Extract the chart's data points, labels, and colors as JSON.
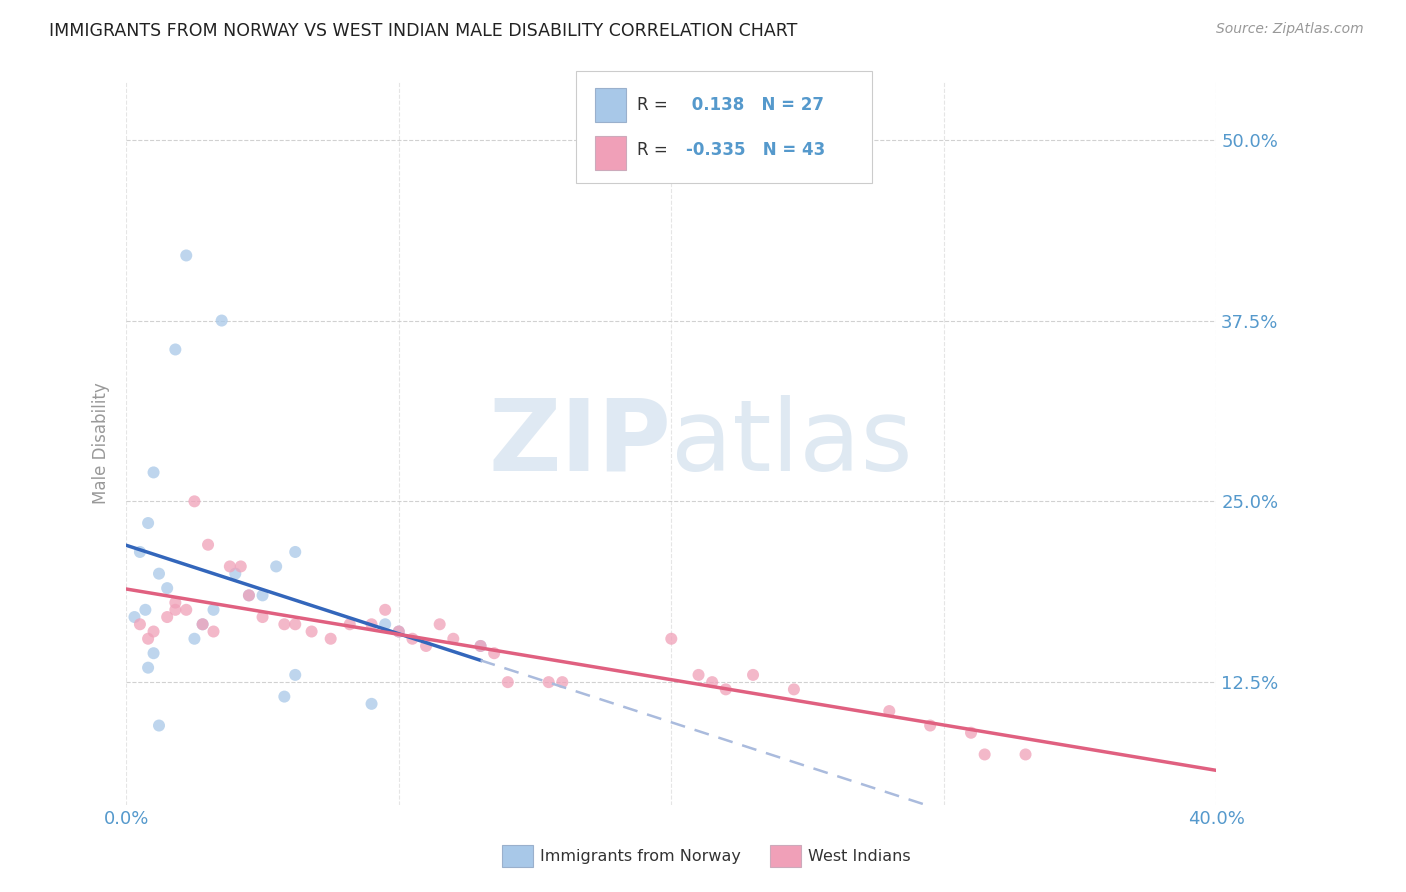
{
  "title": "IMMIGRANTS FROM NORWAY VS WEST INDIAN MALE DISABILITY CORRELATION CHART",
  "source": "Source: ZipAtlas.com",
  "ylabel": "Male Disability",
  "ytick_values": [
    0.125,
    0.25,
    0.375,
    0.5
  ],
  "xlim": [
    0.0,
    0.4
  ],
  "ylim": [
    0.04,
    0.54
  ],
  "norway_R": 0.138,
  "norway_N": 27,
  "west_indian_R": -0.335,
  "west_indian_N": 43,
  "norway_color": "#a8c8e8",
  "norway_line_color": "#3366bb",
  "norway_dash_color": "#aabbdd",
  "west_indian_color": "#f0a0b8",
  "west_indian_line_color": "#e06080",
  "norway_scatter_x": [
    0.022,
    0.035,
    0.018,
    0.008,
    0.005,
    0.012,
    0.007,
    0.003,
    0.04,
    0.055,
    0.062,
    0.045,
    0.05,
    0.032,
    0.028,
    0.095,
    0.1,
    0.13,
    0.01,
    0.008,
    0.062,
    0.058,
    0.09,
    0.012,
    0.015,
    0.01,
    0.025
  ],
  "norway_scatter_y": [
    0.42,
    0.375,
    0.355,
    0.235,
    0.215,
    0.2,
    0.175,
    0.17,
    0.2,
    0.205,
    0.215,
    0.185,
    0.185,
    0.175,
    0.165,
    0.165,
    0.16,
    0.15,
    0.145,
    0.135,
    0.13,
    0.115,
    0.11,
    0.095,
    0.19,
    0.27,
    0.155
  ],
  "west_indian_scatter_x": [
    0.005,
    0.01,
    0.015,
    0.018,
    0.008,
    0.025,
    0.03,
    0.038,
    0.042,
    0.018,
    0.022,
    0.028,
    0.032,
    0.045,
    0.05,
    0.058,
    0.062,
    0.068,
    0.075,
    0.082,
    0.09,
    0.095,
    0.1,
    0.105,
    0.11,
    0.115,
    0.12,
    0.13,
    0.135,
    0.14,
    0.155,
    0.16,
    0.2,
    0.21,
    0.215,
    0.22,
    0.23,
    0.245,
    0.28,
    0.295,
    0.31,
    0.315,
    0.33
  ],
  "west_indian_scatter_y": [
    0.165,
    0.16,
    0.17,
    0.18,
    0.155,
    0.25,
    0.22,
    0.205,
    0.205,
    0.175,
    0.175,
    0.165,
    0.16,
    0.185,
    0.17,
    0.165,
    0.165,
    0.16,
    0.155,
    0.165,
    0.165,
    0.175,
    0.16,
    0.155,
    0.15,
    0.165,
    0.155,
    0.15,
    0.145,
    0.125,
    0.125,
    0.125,
    0.155,
    0.13,
    0.125,
    0.12,
    0.13,
    0.12,
    0.105,
    0.095,
    0.09,
    0.075,
    0.075
  ],
  "watermark_zip": "ZIP",
  "watermark_atlas": "atlas",
  "background_color": "#ffffff",
  "grid_color": "#cccccc",
  "title_color": "#222222",
  "tick_label_color": "#5599cc",
  "legend_norway_label": "Immigrants from Norway",
  "legend_west_indian_label": "West Indians",
  "scatter_size": 75,
  "scatter_alpha": 0.75
}
